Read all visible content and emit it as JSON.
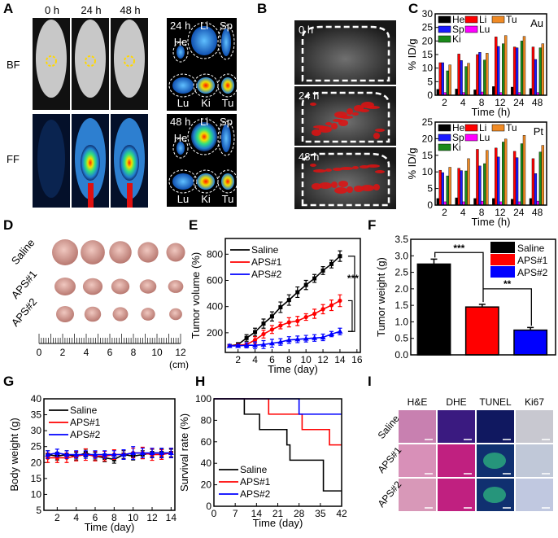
{
  "panel_a": {
    "label": "A",
    "times": [
      "0 h",
      "24 h",
      "48 h"
    ],
    "rows": [
      "BF",
      "FF"
    ],
    "organ_panels": [
      {
        "time": "24 h",
        "organs": [
          "He",
          "Li",
          "Sp",
          "Lu",
          "Ki",
          "Tu"
        ]
      },
      {
        "time": "48 h",
        "organs": [
          "He",
          "Li",
          "Sp",
          "Lu",
          "Ki",
          "Tu"
        ]
      }
    ]
  },
  "panel_b": {
    "label": "B",
    "times": [
      "0 h",
      "24 h",
      "48 h"
    ]
  },
  "panel_c": {
    "label": "C"
  },
  "panel_d": {
    "label": "D",
    "groups": [
      "Saline",
      "APS#1",
      "APS#2"
    ],
    "ruler_ticks": [
      "0",
      "2",
      "4",
      "6",
      "8",
      "10",
      "12"
    ],
    "ruler_unit": "(cm)"
  },
  "panel_e": {
    "label": "E"
  },
  "panel_f": {
    "label": "F"
  },
  "panel_g": {
    "label": "G"
  },
  "panel_h": {
    "label": "H"
  },
  "panel_i": {
    "label": "I",
    "columns": [
      "H&E",
      "DHE",
      "TUNEL",
      "Ki67"
    ],
    "rows": [
      "Saline",
      "APS#1",
      "APS#2"
    ]
  },
  "colors": {
    "He": "#000000",
    "Li": "#ff0000",
    "Sp": "#1a1aff",
    "Lu": "#ff00ff",
    "Ki": "#1a8a1a",
    "Tu": "#f08a24",
    "Saline": "#000000",
    "APS#1": "#ff0000",
    "APS#2": "#0000ff"
  },
  "chart_data": [
    {
      "type": "bar",
      "title": "Au",
      "categories": [
        "2",
        "4",
        "8",
        "12",
        "24",
        "48"
      ],
      "xlabel": "Time (h)",
      "ylabel": "% ID/g",
      "ylim": [
        0,
        30
      ],
      "yticks": [
        "0",
        "5",
        "10",
        "15",
        "20",
        "25",
        "30"
      ],
      "legend": "top-left",
      "series": [
        {
          "name": "He",
          "values": [
            2.2,
            2.3,
            2.0,
            3.2,
            3.0,
            2.5
          ]
        },
        {
          "name": "Li",
          "values": [
            12.0,
            15.2,
            15.0,
            21.5,
            17.8,
            17.8
          ]
        },
        {
          "name": "Sp",
          "values": [
            12.0,
            12.8,
            15.8,
            18.0,
            17.5,
            13.2
          ]
        },
        {
          "name": "Lu",
          "values": [
            1.0,
            1.0,
            1.2,
            1.0,
            1.0,
            1.0
          ]
        },
        {
          "name": "Ki",
          "values": [
            9.0,
            10.6,
            13.0,
            19.0,
            20.0,
            17.5
          ]
        },
        {
          "name": "Tu",
          "values": [
            11.2,
            11.8,
            15.5,
            22.0,
            21.7,
            19.0
          ]
        }
      ]
    },
    {
      "type": "bar",
      "title": "Pt",
      "categories": [
        "2",
        "4",
        "8",
        "12",
        "24",
        "48"
      ],
      "xlabel": "Time (h)",
      "ylabel": "% ID/g",
      "ylim": [
        0,
        25
      ],
      "yticks": [
        "0",
        "5",
        "10",
        "15",
        "20",
        "25"
      ],
      "legend": "top-left",
      "series": [
        {
          "name": "He",
          "values": [
            2.0,
            2.2,
            2.0,
            2.0,
            1.8,
            2.0
          ]
        },
        {
          "name": "Li",
          "values": [
            10.5,
            11.1,
            16.8,
            17.2,
            16.2,
            14.0
          ]
        },
        {
          "name": "Sp",
          "values": [
            9.8,
            10.4,
            11.8,
            14.5,
            14.3,
            9.5
          ]
        },
        {
          "name": "Lu",
          "values": [
            1.0,
            1.0,
            1.2,
            1.0,
            1.0,
            1.2
          ]
        },
        {
          "name": "Ki",
          "values": [
            8.8,
            10.3,
            12.5,
            19.0,
            18.5,
            16.0
          ]
        },
        {
          "name": "Tu",
          "values": [
            11.4,
            14.0,
            16.5,
            19.9,
            21.0,
            18.0
          ]
        }
      ]
    },
    {
      "type": "line",
      "x": [
        1,
        2,
        3,
        4,
        5,
        6,
        7,
        8,
        9,
        10,
        11,
        12,
        13,
        14
      ],
      "xlabel": "Time (day)",
      "ylabel": "Tumor volume (%)",
      "xlim": [
        0.5,
        16.4
      ],
      "ylim": [
        50,
        920
      ],
      "xticks": [
        "2",
        "4",
        "6",
        "8",
        "10",
        "12",
        "14",
        "16"
      ],
      "yticks": [
        "200",
        "400",
        "600",
        "800"
      ],
      "legend": "top-left",
      "annotation": "***",
      "series": [
        {
          "name": "Saline",
          "values": [
            100,
            110,
            160,
            205,
            270,
            325,
            395,
            450,
            510,
            565,
            615,
            675,
            725,
            785
          ],
          "errors": [
            10,
            15,
            25,
            30,
            35,
            35,
            40,
            40,
            40,
            35,
            30,
            30,
            30,
            40
          ]
        },
        {
          "name": "APS#1",
          "values": [
            100,
            105,
            110,
            145,
            190,
            225,
            255,
            280,
            290,
            320,
            345,
            380,
            410,
            445
          ],
          "errors": [
            10,
            10,
            15,
            25,
            30,
            30,
            25,
            35,
            35,
            25,
            35,
            35,
            40,
            45
          ]
        },
        {
          "name": "APS#2",
          "values": [
            100,
            100,
            105,
            105,
            110,
            120,
            130,
            145,
            150,
            155,
            160,
            165,
            190,
            210
          ],
          "errors": [
            10,
            10,
            20,
            25,
            30,
            30,
            25,
            25,
            25,
            25,
            25,
            25,
            20,
            25
          ]
        }
      ]
    },
    {
      "type": "bar",
      "categories": [
        "Saline",
        "APS#1",
        "APS#2"
      ],
      "values": [
        2.75,
        1.45,
        0.75
      ],
      "errors": [
        0.15,
        0.08,
        0.08
      ],
      "ylabel": "Tumor weight (g)",
      "ylim": [
        0,
        3.5
      ],
      "yticks": [
        "0.0",
        "0.5",
        "1.0",
        "1.5",
        "2.0",
        "2.5",
        "3.0",
        "3.5"
      ],
      "legend": "top-right",
      "annotations": [
        "***",
        "**"
      ]
    },
    {
      "type": "line",
      "x": [
        1,
        2,
        3,
        4,
        5,
        6,
        7,
        8,
        9,
        10,
        11,
        12,
        13,
        14
      ],
      "xlabel": "Time (day)",
      "ylabel": "Body weight (g)",
      "xlim": [
        0.6,
        14.4
      ],
      "ylim": [
        5,
        40
      ],
      "xticks": [
        "2",
        "4",
        "6",
        "8",
        "10",
        "12",
        "14"
      ],
      "yticks": [
        "5",
        "10",
        "15",
        "20",
        "25",
        "30",
        "35",
        "40"
      ],
      "legend": "top-left",
      "series": [
        {
          "name": "Saline",
          "values": [
            22.5,
            22,
            22.5,
            22,
            23,
            22,
            21.5,
            21,
            22.5,
            22,
            22.5,
            23,
            23,
            23
          ],
          "errors": [
            1.2,
            1.2,
            1.2,
            1.2,
            1.2,
            1.2,
            1.2,
            1.2,
            1.2,
            1.2,
            1.2,
            1.2,
            1.2,
            1.2
          ]
        },
        {
          "name": "APS#1",
          "values": [
            21.5,
            21.5,
            21.5,
            22,
            22.5,
            22,
            22,
            22.5,
            22.5,
            23,
            23,
            22.5,
            22.5,
            23
          ],
          "errors": [
            1.5,
            1.5,
            1.5,
            1.5,
            1.8,
            1.5,
            1.5,
            1.5,
            1.5,
            1.5,
            1.8,
            1.8,
            1.5,
            1.5
          ]
        },
        {
          "name": "APS#2",
          "values": [
            22.5,
            23,
            22.5,
            22.5,
            22.5,
            22.5,
            22.5,
            22.5,
            22.5,
            23,
            23,
            23,
            23,
            23
          ],
          "errors": [
            1.2,
            1.2,
            1.2,
            1.2,
            1.2,
            1.2,
            1.2,
            1.2,
            1.5,
            2.0,
            1.5,
            1.5,
            1.5,
            1.5
          ]
        }
      ]
    },
    {
      "type": "line",
      "step": true,
      "xlabel": "Time (day)",
      "ylabel": "Survival rate (%)",
      "xlim": [
        0,
        42
      ],
      "ylim": [
        0,
        100
      ],
      "xticks": [
        "0",
        "7",
        "14",
        "21",
        "28",
        "35",
        "42"
      ],
      "yticks": [
        "0",
        "20",
        "40",
        "60",
        "80",
        "100"
      ],
      "legend": "bottom-left",
      "series": [
        {
          "name": "Saline",
          "x": [
            0,
            10,
            15,
            24,
            25,
            36,
            42
          ],
          "values": [
            100,
            85.7,
            71.4,
            57.1,
            42.9,
            14.3,
            14.3
          ]
        },
        {
          "name": "APS#1",
          "x": [
            0,
            18,
            29,
            38,
            42
          ],
          "values": [
            100,
            85.7,
            71.4,
            57.1,
            57.1
          ]
        },
        {
          "name": "APS#2",
          "x": [
            0,
            28,
            42
          ],
          "values": [
            100,
            85.7,
            85.7
          ]
        }
      ]
    }
  ]
}
